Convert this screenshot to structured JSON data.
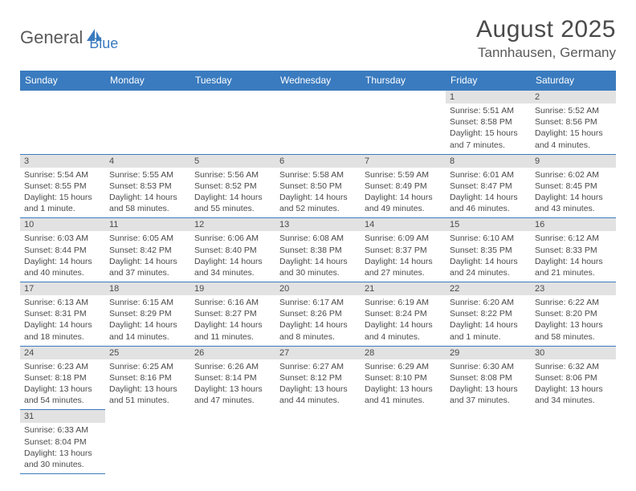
{
  "brand": {
    "part1": "General",
    "part2": "Blue"
  },
  "title": "August 2025",
  "location": "Tannhausen, Germany",
  "colors": {
    "accent": "#3a7bbf",
    "dayHeaderBg": "#e2e2e2",
    "text": "#4a4a4a"
  },
  "dayHeaders": [
    "Sunday",
    "Monday",
    "Tuesday",
    "Wednesday",
    "Thursday",
    "Friday",
    "Saturday"
  ],
  "weeks": [
    [
      null,
      null,
      null,
      null,
      null,
      {
        "n": "1",
        "sr": "Sunrise: 5:51 AM",
        "ss": "Sunset: 8:58 PM",
        "dl": "Daylight: 15 hours and 7 minutes."
      },
      {
        "n": "2",
        "sr": "Sunrise: 5:52 AM",
        "ss": "Sunset: 8:56 PM",
        "dl": "Daylight: 15 hours and 4 minutes."
      }
    ],
    [
      {
        "n": "3",
        "sr": "Sunrise: 5:54 AM",
        "ss": "Sunset: 8:55 PM",
        "dl": "Daylight: 15 hours and 1 minute."
      },
      {
        "n": "4",
        "sr": "Sunrise: 5:55 AM",
        "ss": "Sunset: 8:53 PM",
        "dl": "Daylight: 14 hours and 58 minutes."
      },
      {
        "n": "5",
        "sr": "Sunrise: 5:56 AM",
        "ss": "Sunset: 8:52 PM",
        "dl": "Daylight: 14 hours and 55 minutes."
      },
      {
        "n": "6",
        "sr": "Sunrise: 5:58 AM",
        "ss": "Sunset: 8:50 PM",
        "dl": "Daylight: 14 hours and 52 minutes."
      },
      {
        "n": "7",
        "sr": "Sunrise: 5:59 AM",
        "ss": "Sunset: 8:49 PM",
        "dl": "Daylight: 14 hours and 49 minutes."
      },
      {
        "n": "8",
        "sr": "Sunrise: 6:01 AM",
        "ss": "Sunset: 8:47 PM",
        "dl": "Daylight: 14 hours and 46 minutes."
      },
      {
        "n": "9",
        "sr": "Sunrise: 6:02 AM",
        "ss": "Sunset: 8:45 PM",
        "dl": "Daylight: 14 hours and 43 minutes."
      }
    ],
    [
      {
        "n": "10",
        "sr": "Sunrise: 6:03 AM",
        "ss": "Sunset: 8:44 PM",
        "dl": "Daylight: 14 hours and 40 minutes."
      },
      {
        "n": "11",
        "sr": "Sunrise: 6:05 AM",
        "ss": "Sunset: 8:42 PM",
        "dl": "Daylight: 14 hours and 37 minutes."
      },
      {
        "n": "12",
        "sr": "Sunrise: 6:06 AM",
        "ss": "Sunset: 8:40 PM",
        "dl": "Daylight: 14 hours and 34 minutes."
      },
      {
        "n": "13",
        "sr": "Sunrise: 6:08 AM",
        "ss": "Sunset: 8:38 PM",
        "dl": "Daylight: 14 hours and 30 minutes."
      },
      {
        "n": "14",
        "sr": "Sunrise: 6:09 AM",
        "ss": "Sunset: 8:37 PM",
        "dl": "Daylight: 14 hours and 27 minutes."
      },
      {
        "n": "15",
        "sr": "Sunrise: 6:10 AM",
        "ss": "Sunset: 8:35 PM",
        "dl": "Daylight: 14 hours and 24 minutes."
      },
      {
        "n": "16",
        "sr": "Sunrise: 6:12 AM",
        "ss": "Sunset: 8:33 PM",
        "dl": "Daylight: 14 hours and 21 minutes."
      }
    ],
    [
      {
        "n": "17",
        "sr": "Sunrise: 6:13 AM",
        "ss": "Sunset: 8:31 PM",
        "dl": "Daylight: 14 hours and 18 minutes."
      },
      {
        "n": "18",
        "sr": "Sunrise: 6:15 AM",
        "ss": "Sunset: 8:29 PM",
        "dl": "Daylight: 14 hours and 14 minutes."
      },
      {
        "n": "19",
        "sr": "Sunrise: 6:16 AM",
        "ss": "Sunset: 8:27 PM",
        "dl": "Daylight: 14 hours and 11 minutes."
      },
      {
        "n": "20",
        "sr": "Sunrise: 6:17 AM",
        "ss": "Sunset: 8:26 PM",
        "dl": "Daylight: 14 hours and 8 minutes."
      },
      {
        "n": "21",
        "sr": "Sunrise: 6:19 AM",
        "ss": "Sunset: 8:24 PM",
        "dl": "Daylight: 14 hours and 4 minutes."
      },
      {
        "n": "22",
        "sr": "Sunrise: 6:20 AM",
        "ss": "Sunset: 8:22 PM",
        "dl": "Daylight: 14 hours and 1 minute."
      },
      {
        "n": "23",
        "sr": "Sunrise: 6:22 AM",
        "ss": "Sunset: 8:20 PM",
        "dl": "Daylight: 13 hours and 58 minutes."
      }
    ],
    [
      {
        "n": "24",
        "sr": "Sunrise: 6:23 AM",
        "ss": "Sunset: 8:18 PM",
        "dl": "Daylight: 13 hours and 54 minutes."
      },
      {
        "n": "25",
        "sr": "Sunrise: 6:25 AM",
        "ss": "Sunset: 8:16 PM",
        "dl": "Daylight: 13 hours and 51 minutes."
      },
      {
        "n": "26",
        "sr": "Sunrise: 6:26 AM",
        "ss": "Sunset: 8:14 PM",
        "dl": "Daylight: 13 hours and 47 minutes."
      },
      {
        "n": "27",
        "sr": "Sunrise: 6:27 AM",
        "ss": "Sunset: 8:12 PM",
        "dl": "Daylight: 13 hours and 44 minutes."
      },
      {
        "n": "28",
        "sr": "Sunrise: 6:29 AM",
        "ss": "Sunset: 8:10 PM",
        "dl": "Daylight: 13 hours and 41 minutes."
      },
      {
        "n": "29",
        "sr": "Sunrise: 6:30 AM",
        "ss": "Sunset: 8:08 PM",
        "dl": "Daylight: 13 hours and 37 minutes."
      },
      {
        "n": "30",
        "sr": "Sunrise: 6:32 AM",
        "ss": "Sunset: 8:06 PM",
        "dl": "Daylight: 13 hours and 34 minutes."
      }
    ],
    [
      {
        "n": "31",
        "sr": "Sunrise: 6:33 AM",
        "ss": "Sunset: 8:04 PM",
        "dl": "Daylight: 13 hours and 30 minutes."
      },
      null,
      null,
      null,
      null,
      null,
      null
    ]
  ]
}
